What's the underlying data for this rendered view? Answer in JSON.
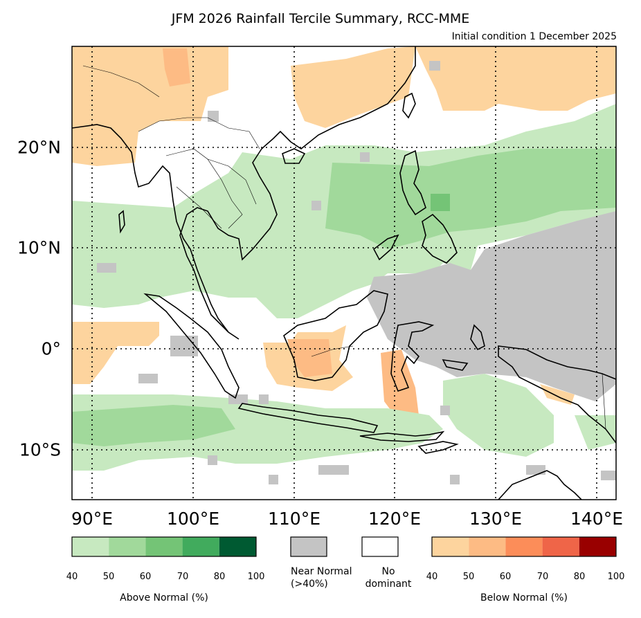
{
  "title": "JFM 2026 Rainfall Tercile Summary, RCC-MME",
  "subtitle": "Initial condition 1 December 2025",
  "map": {
    "lon_labels": [
      "90°E",
      "100°E",
      "110°E",
      "120°E",
      "130°E",
      "140°E"
    ],
    "lat_labels": [
      "20°N",
      "10°N",
      "0°",
      "10°S"
    ],
    "lon_range": [
      88,
      142
    ],
    "lat_range": [
      -15,
      30
    ]
  },
  "legend": {
    "above": {
      "caption": "Above Normal (%)",
      "ticks": [
        "40",
        "50",
        "60",
        "70",
        "80",
        "100"
      ],
      "colors": [
        "#c7e9c0",
        "#a1d99b",
        "#74c476",
        "#41ab5d",
        "#005a32"
      ]
    },
    "near_normal": {
      "line1": "Near Normal",
      "line2": "(>40%)",
      "color": "#c4c4c4"
    },
    "no_dominant": {
      "line1": "No",
      "line2": "dominant",
      "color": "#ffffff"
    },
    "below": {
      "caption": "Below Normal (%)",
      "ticks": [
        "40",
        "50",
        "60",
        "70",
        "80",
        "100"
      ],
      "colors": [
        "#fdd49e",
        "#fdbb84",
        "#fc8d59",
        "#ef6548",
        "#990000"
      ]
    }
  }
}
